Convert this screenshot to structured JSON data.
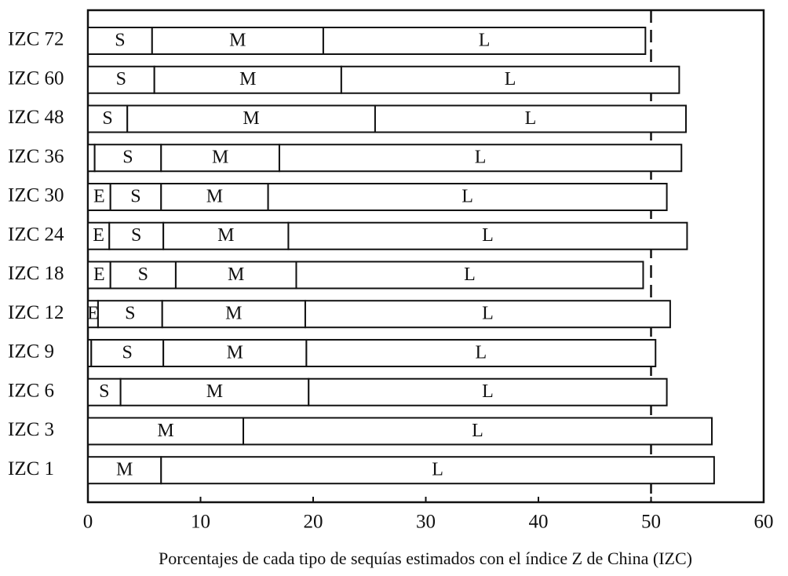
{
  "chart_data": {
    "type": "bar",
    "orientation": "horizontal",
    "stacked": true,
    "xlabel": "Porcentajes de cada tipo de sequías estimados con el índice Z de China (IZC)",
    "categories": [
      "IZC 72",
      "IZC 60",
      "IZC 48",
      "IZC 36",
      "IZC 30",
      "IZC 24",
      "IZC 18",
      "IZC 12",
      "IZC 9",
      "IZC 6",
      "IZC 3",
      "IZC 1"
    ],
    "series": [
      {
        "name": "E",
        "color": "#ffffff",
        "values": [
          null,
          null,
          null,
          0.6,
          2.0,
          1.9,
          2.0,
          0.9,
          0.3,
          null,
          null,
          null
        ]
      },
      {
        "name": "S",
        "color": "#ffffff",
        "values": [
          5.7,
          5.9,
          3.5,
          5.9,
          4.5,
          4.8,
          5.8,
          5.7,
          6.4,
          2.9,
          null,
          null
        ]
      },
      {
        "name": "M",
        "color": "#ffffff",
        "values": [
          15.2,
          16.6,
          22.0,
          10.5,
          9.5,
          11.1,
          10.7,
          12.7,
          12.7,
          16.7,
          13.8,
          6.5
        ]
      },
      {
        "name": "L",
        "color": "#ffffff",
        "values": [
          28.6,
          30.0,
          27.6,
          35.7,
          35.4,
          35.4,
          30.8,
          32.4,
          31.0,
          31.8,
          41.6,
          49.1
        ]
      }
    ],
    "xlim": [
      0,
      60
    ],
    "xticks": [
      0,
      10,
      20,
      30,
      40,
      50,
      60
    ],
    "reference_line": 50
  }
}
